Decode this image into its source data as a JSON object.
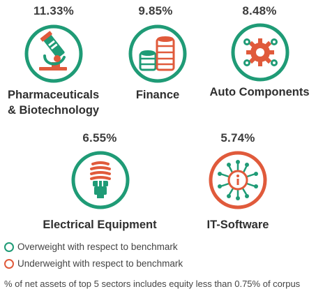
{
  "colors": {
    "overweight": "#1f9b76",
    "underweight": "#e05a3b",
    "text": "#2f2f2f"
  },
  "sectors": [
    {
      "name_line1": "Pharmaceuticals",
      "name_line2": "& Biotechnology",
      "percent": "11.33%",
      "weighting": "overweight",
      "icon": "microscope-icon"
    },
    {
      "name_line1": "Finance",
      "percent": "9.85%",
      "weighting": "overweight",
      "icon": "coins-icon"
    },
    {
      "name_line1": "Auto Components",
      "percent": "8.48%",
      "weighting": "overweight",
      "icon": "gears-icon"
    },
    {
      "name_line1": "Electrical Equipment",
      "percent": "6.55%",
      "weighting": "overweight",
      "icon": "cfl-bulb-icon"
    },
    {
      "name_line1": "IT-Software",
      "percent": "5.74%",
      "weighting": "underweight",
      "icon": "circuit-chip-icon"
    }
  ],
  "legend": {
    "overweight_label": "Overweight with respect to benchmark",
    "underweight_label": "Underweight with respect to benchmark"
  },
  "footnote": "% of net assets of top 5 sectors includes equity less than 0.75% of corpus"
}
